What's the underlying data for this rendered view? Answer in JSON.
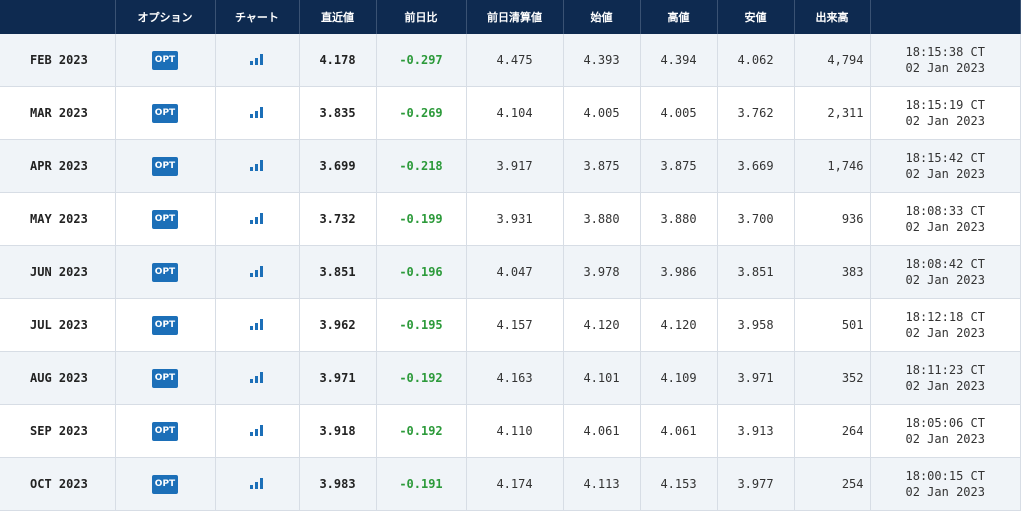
{
  "headers": {
    "month": "",
    "options": "オプション",
    "chart": "チャート",
    "last": "直近値",
    "change": "前日比",
    "prior_settle": "前日清算値",
    "open": "始値",
    "high": "高値",
    "low": "安値",
    "volume": "出来高",
    "updated": ""
  },
  "icons": {
    "options": "opt-badge",
    "chart": "bar-chart-icon"
  },
  "colors": {
    "header_bg": "#0e2a50",
    "change_positive": "#2c9a3a",
    "opt_button": "#1c6fb8",
    "row_alt": "#f0f4f8"
  },
  "rows": [
    {
      "month": "FEB 2023",
      "opt": "OPT",
      "last": "4.178",
      "change": "-0.297",
      "prior_settle": "4.475",
      "open": "4.393",
      "high": "4.394",
      "low": "4.062",
      "volume": "4,794",
      "time": "18:15:38 CT",
      "date": "02 Jan 2023"
    },
    {
      "month": "MAR 2023",
      "opt": "OPT",
      "last": "3.835",
      "change": "-0.269",
      "prior_settle": "4.104",
      "open": "4.005",
      "high": "4.005",
      "low": "3.762",
      "volume": "2,311",
      "time": "18:15:19 CT",
      "date": "02 Jan 2023"
    },
    {
      "month": "APR 2023",
      "opt": "OPT",
      "last": "3.699",
      "change": "-0.218",
      "prior_settle": "3.917",
      "open": "3.875",
      "high": "3.875",
      "low": "3.669",
      "volume": "1,746",
      "time": "18:15:42 CT",
      "date": "02 Jan 2023"
    },
    {
      "month": "MAY 2023",
      "opt": "OPT",
      "last": "3.732",
      "change": "-0.199",
      "prior_settle": "3.931",
      "open": "3.880",
      "high": "3.880",
      "low": "3.700",
      "volume": "936",
      "time": "18:08:33 CT",
      "date": "02 Jan 2023"
    },
    {
      "month": "JUN 2023",
      "opt": "OPT",
      "last": "3.851",
      "change": "-0.196",
      "prior_settle": "4.047",
      "open": "3.978",
      "high": "3.986",
      "low": "3.851",
      "volume": "383",
      "time": "18:08:42 CT",
      "date": "02 Jan 2023"
    },
    {
      "month": "JUL 2023",
      "opt": "OPT",
      "last": "3.962",
      "change": "-0.195",
      "prior_settle": "4.157",
      "open": "4.120",
      "high": "4.120",
      "low": "3.958",
      "volume": "501",
      "time": "18:12:18 CT",
      "date": "02 Jan 2023"
    },
    {
      "month": "AUG 2023",
      "opt": "OPT",
      "last": "3.971",
      "change": "-0.192",
      "prior_settle": "4.163",
      "open": "4.101",
      "high": "4.109",
      "low": "3.971",
      "volume": "352",
      "time": "18:11:23 CT",
      "date": "02 Jan 2023"
    },
    {
      "month": "SEP 2023",
      "opt": "OPT",
      "last": "3.918",
      "change": "-0.192",
      "prior_settle": "4.110",
      "open": "4.061",
      "high": "4.061",
      "low": "3.913",
      "volume": "264",
      "time": "18:05:06 CT",
      "date": "02 Jan 2023"
    },
    {
      "month": "OCT 2023",
      "opt": "OPT",
      "last": "3.983",
      "change": "-0.191",
      "prior_settle": "4.174",
      "open": "4.113",
      "high": "4.153",
      "low": "3.977",
      "volume": "254",
      "time": "18:00:15 CT",
      "date": "02 Jan 2023"
    }
  ]
}
